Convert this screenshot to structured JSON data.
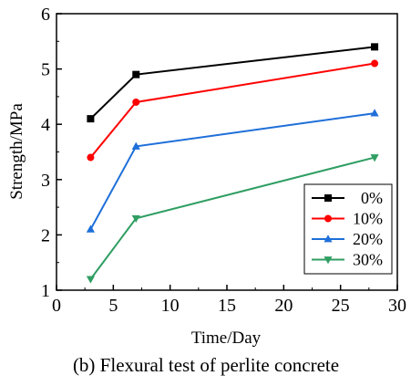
{
  "chart_data": {
    "type": "line",
    "caption": "(b) Flexural test of perlite concrete",
    "xlabel": "Time/Day",
    "ylabel": "Strength/MPa",
    "xlim": [
      0,
      30
    ],
    "ylim": [
      1,
      6
    ],
    "x_ticks": [
      "0",
      "5",
      "10",
      "15",
      "20",
      "25",
      "30"
    ],
    "y_ticks": [
      "1",
      "2",
      "3",
      "4",
      "5",
      "6"
    ],
    "x": [
      3,
      7,
      28
    ],
    "grid": false,
    "legend_position": "bottom-right",
    "series": [
      {
        "name": "0%",
        "values": [
          4.1,
          4.9,
          5.4
        ],
        "color": "#000000",
        "marker": "square"
      },
      {
        "name": "10%",
        "values": [
          3.4,
          4.4,
          5.1
        ],
        "color": "#ff0000",
        "marker": "circle"
      },
      {
        "name": "20%",
        "values": [
          2.1,
          3.6,
          4.2
        ],
        "color": "#1e6fd9",
        "marker": "triangle-up"
      },
      {
        "name": "30%",
        "values": [
          1.2,
          2.3,
          3.4
        ],
        "color": "#2f9e62",
        "marker": "triangle-down"
      }
    ]
  }
}
